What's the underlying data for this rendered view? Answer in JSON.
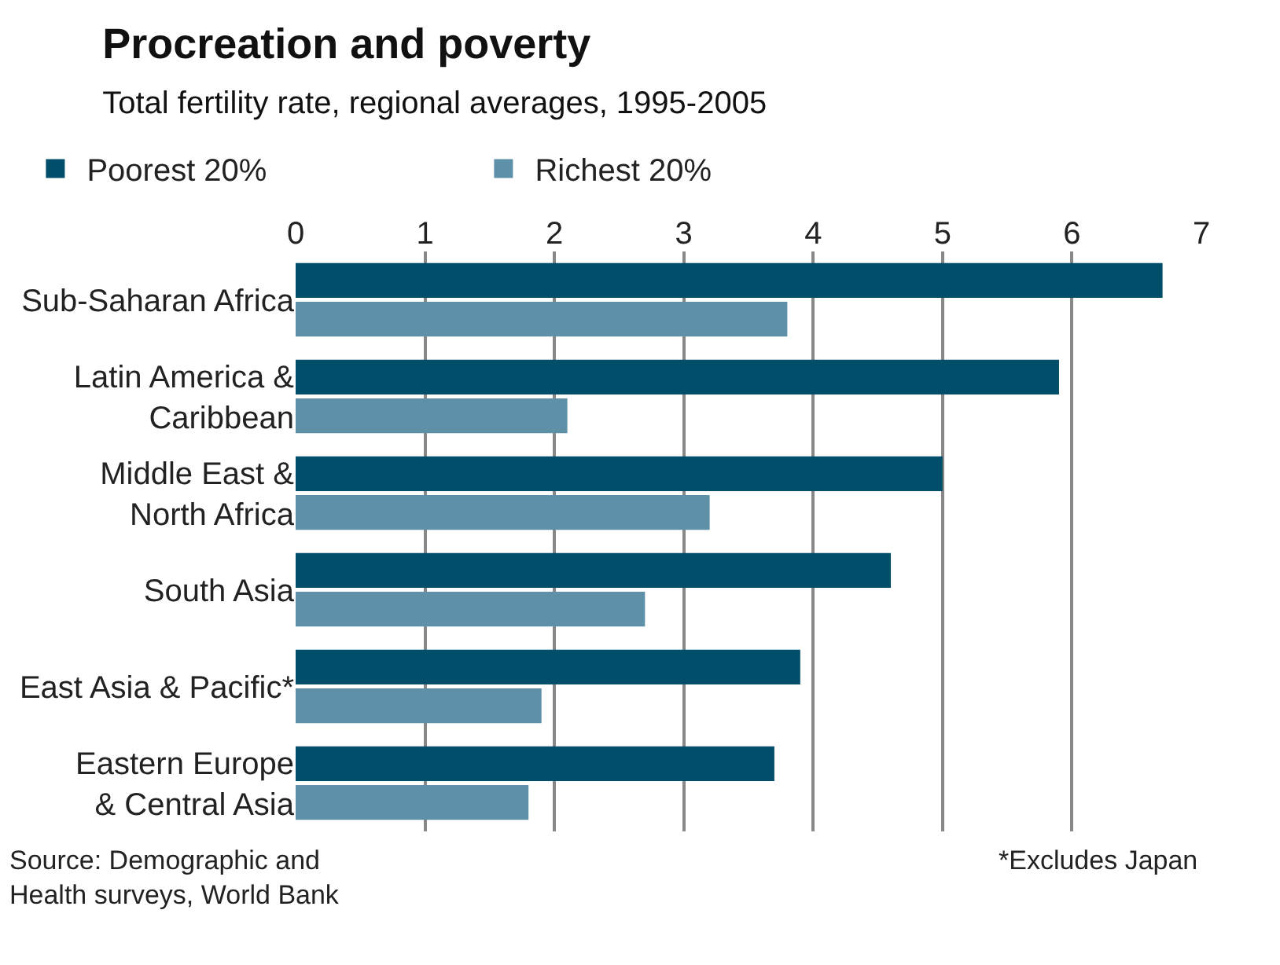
{
  "chart_data": {
    "type": "bar",
    "orientation": "horizontal",
    "title": "Procreation and poverty",
    "subtitle": "Total fertility rate, regional averages, 1995-2005",
    "categories": [
      "Sub-Saharan Africa",
      "Latin America &\nCaribbean",
      "Middle East &\nNorth Africa",
      "South Asia",
      "East Asia & Pacific*",
      "Eastern Europe\n& Central Asia"
    ],
    "series": [
      {
        "name": "Poorest 20%",
        "color": "#004e6a",
        "values": [
          6.7,
          5.9,
          5.0,
          4.6,
          3.9,
          3.7
        ]
      },
      {
        "name": "Richest 20%",
        "color": "#5e91a8",
        "values": [
          3.8,
          2.1,
          3.2,
          2.7,
          1.9,
          1.8
        ]
      }
    ],
    "xlim": [
      0,
      7
    ],
    "xticks": [
      0,
      1,
      2,
      3,
      4,
      5,
      6,
      7
    ],
    "grid": "x",
    "legend": "top left",
    "annotations": [
      "Source: Demographic and\nHealth surveys, World Bank",
      "*Excludes Japan"
    ]
  }
}
